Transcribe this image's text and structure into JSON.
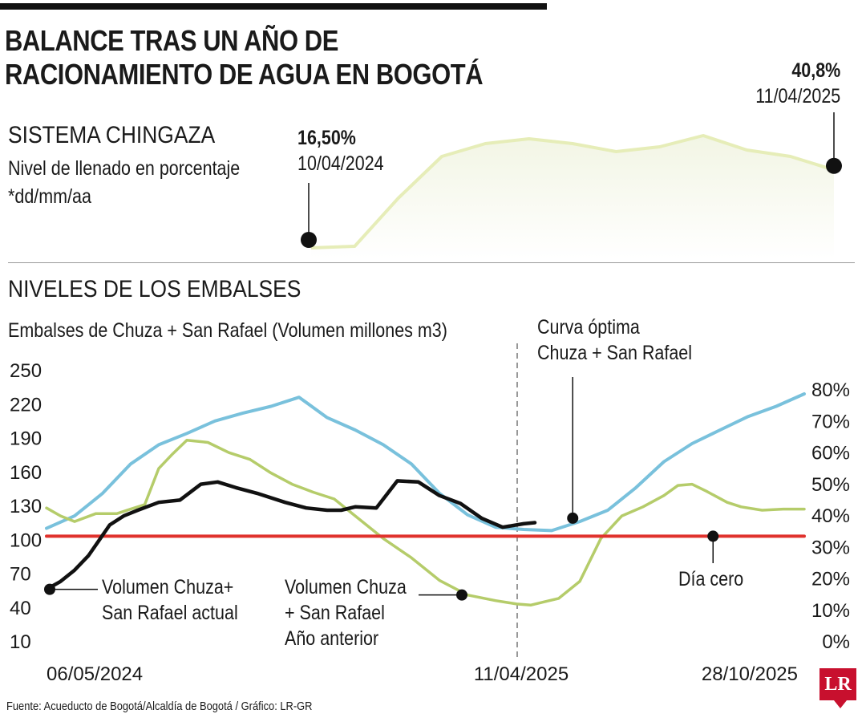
{
  "title_line1": "BALANCE TRAS UN AÑO DE",
  "title_line2": "RACIONAMIENTO DE AGUA EN BOGOTÁ",
  "chingaza": {
    "heading": "SISTEMA CHINGAZA",
    "subtitle": "Nivel de llenado en porcentaje",
    "date_format": "*dd/mm/aa",
    "start_value": "16,50%",
    "start_date": "10/04/2024",
    "end_value": "40,8%",
    "end_date": "11/04/2025"
  },
  "embalses": {
    "heading": "NIVELES DE LOS EMBALSES",
    "subtitle": "Embalses de Chuza + San Rafael (Volumen millones m3)",
    "ann_actual_1": "Volumen Chuza+",
    "ann_actual_2": "San Rafael actual",
    "ann_prev_1": "Volumen Chuza",
    "ann_prev_2": "+ San Rafael",
    "ann_prev_3": "Año anterior",
    "ann_optima_1": "Curva óptima",
    "ann_optima_2": "Chuza + San Rafael",
    "ann_dia_cero": "Día cero"
  },
  "source": "Fuente: Acueducto de Bogotá/Alcaldía de Bogotá / Gráfico: LR-GR",
  "logo_text": "LR",
  "colors": {
    "actual": "#111111",
    "anterior": "#b5cc6a",
    "optima": "#79c1dc",
    "dia_cero": "#e0322d",
    "chingaza_line": "#e6edb8",
    "chingaza_fill": "#f2f5e4"
  },
  "chart_data": [
    {
      "type": "area",
      "title": "SISTEMA CHINGAZA",
      "subtitle": "Nivel de llenado en porcentaje",
      "x": [
        "10/04/2024",
        "01/05/2024",
        "01/06/2024",
        "01/07/2024",
        "01/08/2024",
        "01/09/2024",
        "01/10/2024",
        "01/11/2024",
        "01/12/2024",
        "01/01/2025",
        "01/02/2025",
        "01/03/2025",
        "11/04/2025"
      ],
      "values": [
        16.5,
        17.0,
        32.0,
        45.0,
        49.0,
        50.5,
        49.0,
        46.5,
        48.0,
        51.5,
        47.0,
        45.0,
        40.8
      ],
      "ylim": [
        15,
        55
      ]
    },
    {
      "type": "line",
      "title": "NIVELES DE LOS EMBALSES",
      "subtitle": "Embalses de Chuza + San Rafael (Volumen millones m3)",
      "x_ticks": [
        "06/05/2024",
        "11/04/2025",
        "28/10/2025"
      ],
      "y_ticks_left": [
        "250",
        "220",
        "190",
        "160",
        "130",
        "100",
        "70",
        "40",
        "10"
      ],
      "y_ticks_right": [
        "80%",
        "70%",
        "60%",
        "50%",
        "40%",
        "30%",
        "20%",
        "10%",
        "0%"
      ],
      "ylim": [
        10,
        250
      ],
      "x_domain_days": [
        0,
        540
      ],
      "vline_label": "11/04/2025",
      "series": [
        {
          "name": "Volumen Chuza+ San Rafael actual",
          "x": [
            0,
            10,
            20,
            30,
            45,
            55,
            65,
            80,
            95,
            110,
            122,
            135,
            150,
            170,
            185,
            200,
            210,
            220,
            235,
            250,
            265,
            280,
            295,
            310,
            325,
            340,
            348
          ],
          "y": [
            55,
            62,
            72,
            85,
            112,
            120,
            125,
            132,
            134,
            148,
            150,
            145,
            140,
            132,
            127,
            125,
            125,
            128,
            127,
            151,
            150,
            138,
            131,
            118,
            110,
            113,
            114
          ]
        },
        {
          "name": "Volumen Chuza + San Rafael Año anterior",
          "x": [
            0,
            10,
            20,
            35,
            50,
            60,
            70,
            80,
            90,
            100,
            115,
            130,
            145,
            160,
            175,
            190,
            205,
            220,
            240,
            260,
            280,
            300,
            320,
            335,
            345,
            355,
            365,
            380,
            395,
            410,
            425,
            440,
            450,
            460,
            470,
            485,
            495,
            510,
            525,
            540
          ],
          "y": [
            127,
            120,
            115,
            122,
            122,
            126,
            130,
            162,
            175,
            187,
            185,
            176,
            170,
            158,
            148,
            141,
            135,
            120,
            100,
            83,
            63,
            50,
            45,
            42,
            41,
            44,
            47,
            62,
            100,
            120,
            128,
            138,
            147,
            148,
            142,
            132,
            128,
            125,
            126,
            126
          ]
        },
        {
          "name": "Curva óptima Chuza + San Rafael",
          "x": [
            0,
            20,
            40,
            60,
            80,
            100,
            120,
            140,
            160,
            180,
            200,
            220,
            240,
            260,
            280,
            300,
            320,
            340,
            360,
            380,
            400,
            420,
            440,
            460,
            480,
            500,
            520,
            540
          ],
          "y": [
            109,
            120,
            140,
            166,
            183,
            193,
            204,
            211,
            217,
            225,
            207,
            196,
            183,
            166,
            140,
            121,
            110,
            108,
            107,
            115,
            125,
            145,
            168,
            184,
            196,
            208,
            217,
            228
          ]
        },
        {
          "name": "Día cero",
          "x": [
            0,
            540
          ],
          "y": [
            102,
            102
          ]
        }
      ]
    }
  ]
}
